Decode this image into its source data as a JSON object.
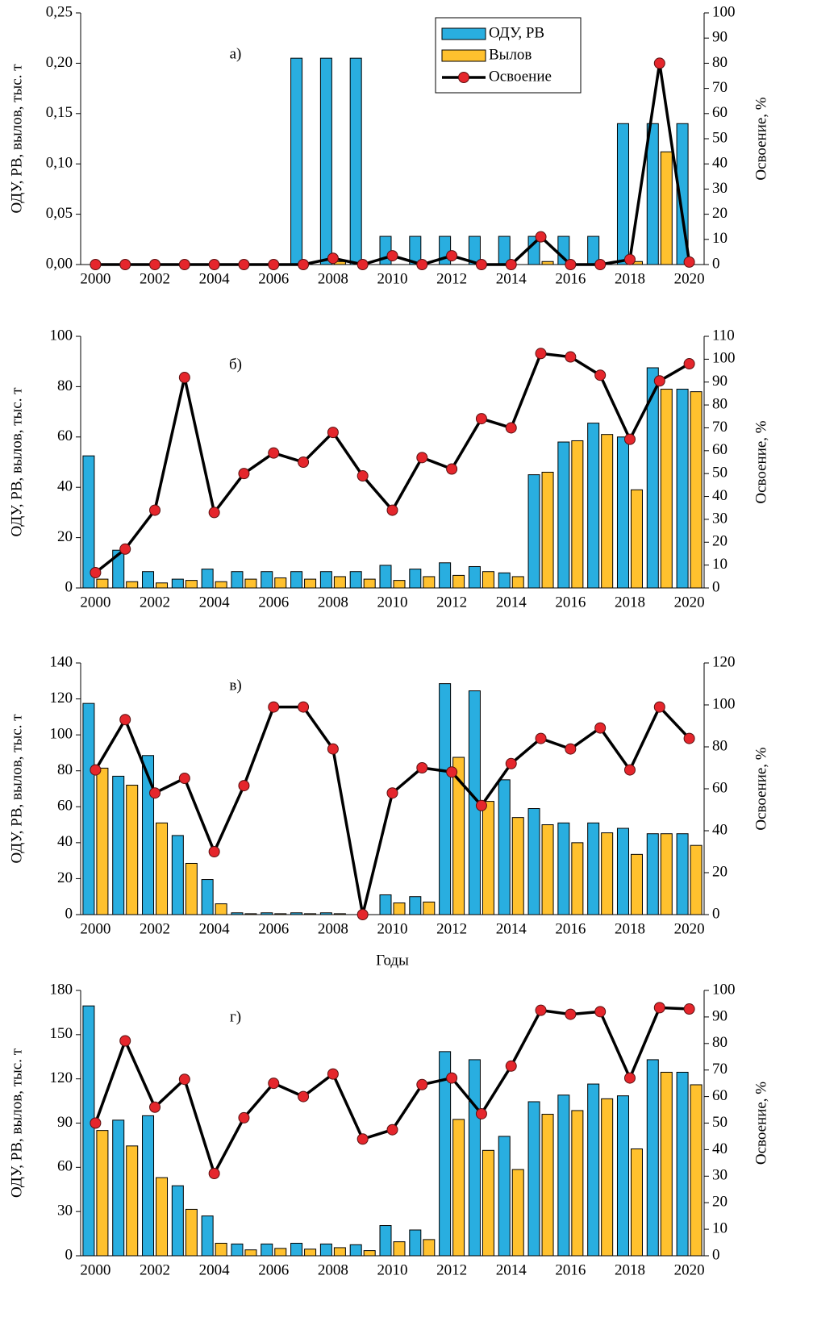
{
  "chart_data": [
    {
      "type": "bar_line",
      "annotation": "а)",
      "y_label": "ОДУ, РВ, вылов, тыс. т",
      "y2_label": "Освоение, %",
      "legend": "top",
      "grid": false,
      "categories": [
        "2000",
        null,
        "2002",
        null,
        "2004",
        null,
        "2006",
        null,
        "2008",
        null,
        "2010",
        null,
        "2012",
        null,
        "2014",
        null,
        "2016",
        null,
        "2018",
        null,
        "2020"
      ],
      "ylim": [
        0,
        0.25
      ],
      "yticks": [
        {
          "value": 0,
          "label": "0,00"
        },
        {
          "value": 0.05,
          "label": "0,05"
        },
        {
          "value": 0.1,
          "label": "0,10"
        },
        {
          "value": 0.15,
          "label": "0,15"
        },
        {
          "value": 0.2,
          "label": "0,20"
        },
        {
          "value": 0.25,
          "label": "0,25"
        }
      ],
      "y2lim": [
        0,
        100
      ],
      "y2ticks": [
        0,
        10,
        20,
        30,
        40,
        50,
        60,
        70,
        80,
        90,
        100
      ],
      "series": [
        {
          "name": "ОДУ, РВ",
          "color": "#29aee0",
          "values": [
            0,
            0,
            0,
            0,
            0,
            0,
            0,
            0.205,
            0.205,
            0.205,
            0.028,
            0.028,
            0.028,
            0.028,
            0.028,
            0.028,
            0.028,
            0.028,
            0.14,
            0.14,
            0.14
          ]
        },
        {
          "name": "Вылов",
          "color": "#ffc12e",
          "values": [
            0,
            0,
            0,
            0,
            0,
            0,
            0,
            0,
            0.003,
            0,
            0,
            0,
            0,
            0,
            0,
            0.003,
            0,
            0,
            0.003,
            0.112,
            0
          ]
        },
        {
          "name": "Освоение",
          "color": "#000000",
          "marker_color": "#e5262c",
          "axis": "y2",
          "values": [
            0,
            0,
            0,
            0,
            0,
            0,
            0,
            0,
            2.5,
            0,
            3.5,
            0,
            3.5,
            0,
            0,
            11,
            0,
            0,
            2,
            80,
            1
          ]
        }
      ]
    },
    {
      "type": "bar_line",
      "annotation": "б)",
      "y_label": "ОДУ, РВ, вылов, тыс. т",
      "y2_label": "Освоение, %",
      "grid": false,
      "categories": [
        "2000",
        null,
        "2002",
        null,
        "2004",
        null,
        "2006",
        null,
        "2008",
        null,
        "2010",
        null,
        "2012",
        null,
        "2014",
        null,
        "2016",
        null,
        "2018",
        null,
        "2020"
      ],
      "ylim": [
        0,
        100
      ],
      "yticks": [
        0,
        20,
        40,
        60,
        80,
        100
      ],
      "y2lim": [
        0,
        110
      ],
      "y2ticks": [
        0,
        10,
        20,
        30,
        40,
        50,
        60,
        70,
        80,
        90,
        100,
        110
      ],
      "series": [
        {
          "color": "#29aee0",
          "values": [
            52.5,
            15,
            6.5,
            3.5,
            7.5,
            6.5,
            6.5,
            6.5,
            6.5,
            6.5,
            9,
            7.5,
            10,
            8.5,
            6,
            45,
            58,
            65.5,
            60,
            87.5,
            79
          ]
        },
        {
          "color": "#ffc12e",
          "values": [
            3.5,
            2.5,
            2,
            3,
            2.5,
            3.5,
            4,
            3.5,
            4.5,
            3.5,
            3,
            4.5,
            5,
            6.5,
            4.5,
            46,
            58.5,
            61,
            39,
            79,
            78
          ]
        },
        {
          "color": "#000000",
          "marker_color": "#e5262c",
          "axis": "y2",
          "values": [
            6.7,
            17,
            34,
            92,
            33,
            50,
            59,
            55,
            68,
            49,
            34,
            57,
            52,
            74,
            70,
            102.5,
            101,
            93,
            65,
            90.5,
            98
          ]
        }
      ]
    },
    {
      "type": "bar_line",
      "annotation": "в)",
      "y_label": "ОДУ, РВ, вылов, тыс. т",
      "y2_label": "Освоение, %",
      "x_label": "Годы",
      "grid": false,
      "categories": [
        "2000",
        null,
        "2002",
        null,
        "2004",
        null,
        "2006",
        null,
        "2008",
        null,
        "2010",
        null,
        "2012",
        null,
        "2014",
        null,
        "2016",
        null,
        "2018",
        null,
        "2020"
      ],
      "ylim": [
        0,
        140
      ],
      "yticks": [
        0,
        20,
        40,
        60,
        80,
        100,
        120,
        140
      ],
      "y2lim": [
        0,
        120
      ],
      "y2ticks": [
        0,
        20,
        40,
        60,
        80,
        100,
        120
      ],
      "series": [
        {
          "color": "#29aee0",
          "values": [
            117.5,
            77,
            88.5,
            44,
            19.5,
            1,
            1,
            1,
            1,
            0,
            11,
            10,
            128.5,
            124.5,
            75,
            59,
            51,
            51,
            48,
            45,
            45
          ]
        },
        {
          "color": "#ffc12e",
          "values": [
            81.5,
            72,
            51,
            28.5,
            6,
            0.5,
            0.5,
            0.5,
            0.5,
            0,
            6.5,
            7,
            87.5,
            63,
            54,
            50,
            40,
            45.5,
            33.5,
            45,
            38.5
          ]
        },
        {
          "color": "#000000",
          "marker_color": "#e5262c",
          "axis": "y2",
          "values": [
            69,
            93,
            58,
            65,
            30,
            61.5,
            99,
            99,
            79,
            0,
            58,
            70,
            68,
            52,
            72,
            84,
            79,
            89,
            69,
            99,
            84
          ]
        }
      ]
    },
    {
      "type": "bar_line",
      "annotation": "г)",
      "y_label": "ОДУ, РВ, вылов, тыс. т",
      "y2_label": "Освоение, %",
      "grid": false,
      "categories": [
        "2000",
        null,
        "2002",
        null,
        "2004",
        null,
        "2006",
        null,
        "2008",
        null,
        "2010",
        null,
        "2012",
        null,
        "2014",
        null,
        "2016",
        null,
        "2018",
        null,
        "2020"
      ],
      "ylim": [
        0,
        180
      ],
      "yticks": [
        0,
        30,
        60,
        90,
        120,
        150,
        180
      ],
      "y2lim": [
        0,
        100
      ],
      "y2ticks": [
        0,
        10,
        20,
        30,
        40,
        50,
        60,
        70,
        80,
        90,
        100
      ],
      "series": [
        {
          "color": "#29aee0",
          "values": [
            169.5,
            92,
            95,
            47.5,
            27,
            8,
            8,
            8.5,
            8,
            7.5,
            20.5,
            17.5,
            138.5,
            133,
            81,
            104.5,
            109,
            116.5,
            108.5,
            133,
            124.5
          ]
        },
        {
          "color": "#ffc12e",
          "values": [
            85,
            74.5,
            53,
            31.5,
            8.5,
            4,
            5,
            4.5,
            5.5,
            3.5,
            9.5,
            11,
            92.5,
            71.5,
            58.5,
            96,
            98.5,
            106.5,
            72.5,
            124.5,
            116
          ]
        },
        {
          "color": "#000000",
          "marker_color": "#e5262c",
          "axis": "y2",
          "values": [
            50,
            81,
            56,
            66.5,
            31,
            52,
            65,
            60,
            68.5,
            44,
            47.5,
            64.5,
            67,
            53.5,
            71.5,
            92.5,
            91,
            92,
            67,
            93.5,
            93
          ]
        }
      ]
    }
  ]
}
